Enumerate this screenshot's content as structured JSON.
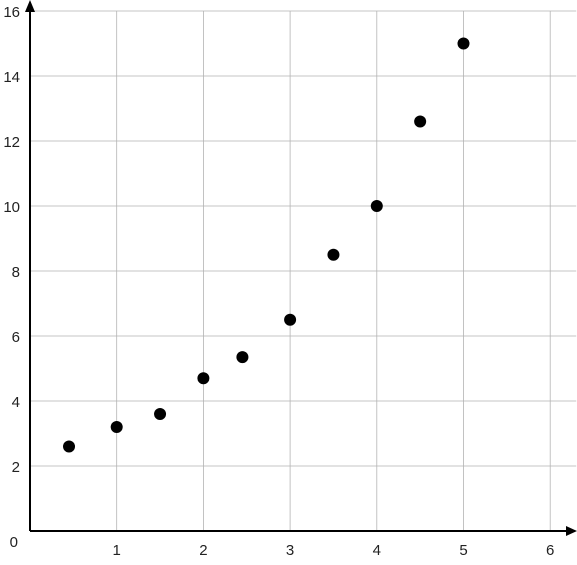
{
  "chart_data": {
    "type": "scatter",
    "title": "",
    "xlabel": "",
    "ylabel": "",
    "xlim": [
      0,
      6.3
    ],
    "ylim": [
      0,
      16
    ],
    "grid": true,
    "x_ticks": [
      1,
      2,
      3,
      4,
      5,
      6
    ],
    "y_ticks": [
      2,
      4,
      6,
      8,
      10,
      12,
      14,
      16
    ],
    "origin_label": "0",
    "marker_color": "#000000",
    "series": [
      {
        "points": [
          {
            "x": 0.45,
            "y": 2.6
          },
          {
            "x": 1.0,
            "y": 3.2
          },
          {
            "x": 1.5,
            "y": 3.6
          },
          {
            "x": 2.0,
            "y": 4.7
          },
          {
            "x": 2.45,
            "y": 5.35
          },
          {
            "x": 3.0,
            "y": 6.5
          },
          {
            "x": 3.5,
            "y": 8.5
          },
          {
            "x": 4.0,
            "y": 10.0
          },
          {
            "x": 4.5,
            "y": 12.6
          },
          {
            "x": 5.0,
            "y": 15.0
          }
        ]
      }
    ]
  }
}
